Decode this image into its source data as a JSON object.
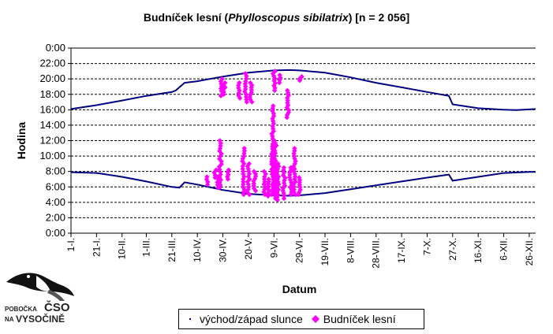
{
  "title": {
    "prefix": "Budníček lesní (",
    "italic": "Phylloscopus sibilatrix",
    "suffix": ") [n = 2 056]"
  },
  "logo": {
    "line1": "POBOČKA",
    "line2": "ČSO",
    "line3": "NA",
    "line4": "VYSOČINĚ"
  },
  "colors": {
    "sun": "#000080",
    "birds": "#ff00ff",
    "grid": "#000000"
  },
  "chart_data": {
    "type": "scatter",
    "title": "Budníček lesní (Phylloscopus sibilatrix) [n = 2 056]",
    "xlabel": "Datum",
    "ylabel": "Hodina",
    "ylim": [
      0,
      24
    ],
    "xlim": [
      "1-I.",
      "31-XII."
    ],
    "grid": "horizontal dashed",
    "legend_position": "bottom",
    "ytick_labels": [
      "0:00",
      "2:00",
      "4:00",
      "6:00",
      "8:00",
      "10:00",
      "12:00",
      "14:00",
      "16:00",
      "18:00",
      "20:00",
      "22:00",
      "0:00"
    ],
    "xtick_labels": [
      "1-I.",
      "21-I.",
      "10-II.",
      "1-III.",
      "21-III.",
      "10-IV.",
      "30-IV.",
      "20-V.",
      "9-VI.",
      "29-VI.",
      "19-VII.",
      "8-VIII.",
      "28-VIII.",
      "17-IX.",
      "7-X.",
      "27-X.",
      "16-XI.",
      "6-XII.",
      "26-XII."
    ],
    "series": [
      {
        "name": "východ/západ slunce",
        "kind": "line",
        "sunrise": [
          [
            "1-I.",
            7.9
          ],
          [
            "21-I.",
            7.8
          ],
          [
            "10-II.",
            7.3
          ],
          [
            "1-III.",
            6.7
          ],
          [
            "21-III.",
            6.0
          ],
          [
            "27-III.",
            5.9
          ],
          [
            "31-III.",
            6.6
          ],
          [
            "10-IV.",
            6.3
          ],
          [
            "30-IV.",
            5.6
          ],
          [
            "20-V.",
            5.1
          ],
          [
            "9-VI.",
            4.9
          ],
          [
            "21-VI.",
            4.85
          ],
          [
            "29-VI.",
            4.9
          ],
          [
            "19-VII.",
            5.2
          ],
          [
            "8-VIII.",
            5.7
          ],
          [
            "28-VIII.",
            6.2
          ],
          [
            "17-IX.",
            6.7
          ],
          [
            "7-X.",
            7.2
          ],
          [
            "24-X.",
            7.6
          ],
          [
            "27-X.",
            6.8
          ],
          [
            "16-XI.",
            7.3
          ],
          [
            "6-XII.",
            7.8
          ],
          [
            "26-XII.",
            7.95
          ],
          [
            "31-XII.",
            7.95
          ]
        ],
        "sunset": [
          [
            "1-I.",
            16.1
          ],
          [
            "21-I.",
            16.6
          ],
          [
            "10-II.",
            17.2
          ],
          [
            "1-III.",
            17.8
          ],
          [
            "21-III.",
            18.3
          ],
          [
            "24-III.",
            18.5
          ],
          [
            "31-III.",
            19.5
          ],
          [
            "10-IV.",
            19.7
          ],
          [
            "30-IV.",
            20.3
          ],
          [
            "20-V.",
            20.8
          ],
          [
            "9-VI.",
            21.1
          ],
          [
            "21-VI.",
            21.15
          ],
          [
            "29-VI.",
            21.1
          ],
          [
            "19-VII.",
            20.8
          ],
          [
            "8-VIII.",
            20.2
          ],
          [
            "28-VIII.",
            19.5
          ],
          [
            "17-IX.",
            18.9
          ],
          [
            "7-X.",
            18.3
          ],
          [
            "24-X.",
            17.8
          ],
          [
            "27-X.",
            16.7
          ],
          [
            "16-XI.",
            16.2
          ],
          [
            "6-XII.",
            16.0
          ],
          [
            "16-XII.",
            15.95
          ],
          [
            "31-XII.",
            16.1
          ]
        ]
      },
      {
        "name": "Budníček lesní",
        "kind": "scatter",
        "clusters": [
          {
            "date": "18-IV.",
            "from": 6.3,
            "to": 7.3
          },
          {
            "date": "24-IV.",
            "from": 7.2,
            "to": 8.2
          },
          {
            "date": "26-IV.",
            "from": 5.9,
            "to": 7.3
          },
          {
            "date": "28-IV.",
            "from": 5.9,
            "to": 12.0
          },
          {
            "date": "29-IV.",
            "from": 17.8,
            "to": 20.0
          },
          {
            "date": "1-V.",
            "from": 18.0,
            "to": 19.5
          },
          {
            "date": "4-V.",
            "from": 7.0,
            "to": 8.2
          },
          {
            "date": "13-V.",
            "from": 17.5,
            "to": 19.5
          },
          {
            "date": "16-V.",
            "from": 5.0,
            "to": 11.0
          },
          {
            "date": "18-V.",
            "from": 17.0,
            "to": 20.7
          },
          {
            "date": "20-V.",
            "from": 5.0,
            "to": 9.0
          },
          {
            "date": "22-V.",
            "from": 17.0,
            "to": 19.5
          },
          {
            "date": "25-V.",
            "from": 5.5,
            "to": 8.0
          },
          {
            "date": "2-VI.",
            "from": 5.0,
            "to": 8.0
          },
          {
            "date": "5-VI.",
            "from": 4.8,
            "to": 7.0
          },
          {
            "date": "8-VI.",
            "from": 5.0,
            "to": 16.5
          },
          {
            "date": "9-VI.",
            "from": 18.5,
            "to": 21.0
          },
          {
            "date": "10-VI.",
            "from": 4.5,
            "to": 12.0
          },
          {
            "date": "12-VI.",
            "from": 4.3,
            "to": 9.0
          },
          {
            "date": "14-VI.",
            "from": 19.5,
            "to": 20.5
          },
          {
            "date": "17-VI.",
            "from": 4.5,
            "to": 8.5
          },
          {
            "date": "20-VI.",
            "from": 15.0,
            "to": 18.5
          },
          {
            "date": "22-VI.",
            "from": 5.0,
            "to": 8.5
          },
          {
            "date": "25-VI.",
            "from": 5.0,
            "to": 11.0
          },
          {
            "date": "29-VI.",
            "from": 5.0,
            "to": 7.2
          },
          {
            "date": "30-VI.",
            "from": 19.8,
            "to": 20.3
          }
        ]
      }
    ]
  }
}
